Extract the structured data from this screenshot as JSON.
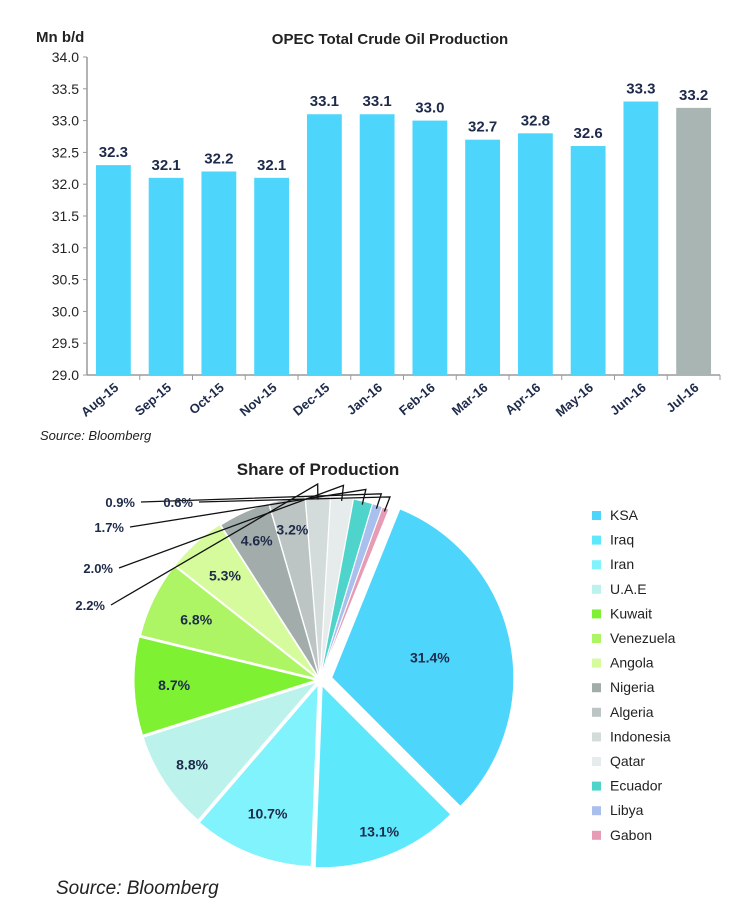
{
  "chart_data": [
    {
      "type": "bar",
      "title": "OPEC Total Crude Oil Production",
      "ylabel": "Mn b/d",
      "xlabel": "",
      "ylim": [
        29.0,
        34.0
      ],
      "yticks": [
        "29.0",
        "29.5",
        "30.0",
        "30.5",
        "31.0",
        "31.5",
        "32.0",
        "32.5",
        "33.0",
        "33.5",
        "34.0"
      ],
      "categories": [
        "Aug-15",
        "Sep-15",
        "Oct-15",
        "Nov-15",
        "Dec-15",
        "Jan-16",
        "Feb-16",
        "Mar-16",
        "Apr-16",
        "May-16",
        "Jun-16",
        "Jul-16"
      ],
      "values": [
        32.3,
        32.1,
        32.2,
        32.1,
        33.1,
        33.1,
        33.0,
        32.7,
        32.8,
        32.6,
        33.3,
        33.2
      ],
      "labels": [
        "32.3",
        "32.1",
        "32.2",
        "32.1",
        "33.1",
        "33.1",
        "33.0",
        "32.7",
        "32.8",
        "32.6",
        "33.3",
        "33.2"
      ],
      "bar_colors": [
        "#4dd5fb",
        "#4dd5fb",
        "#4dd5fb",
        "#4dd5fb",
        "#4dd5fb",
        "#4dd5fb",
        "#4dd5fb",
        "#4dd5fb",
        "#4dd5fb",
        "#4dd5fb",
        "#4dd5fb",
        "#a9b5b3"
      ],
      "source": "Source: Bloomberg"
    },
    {
      "type": "pie",
      "title": "Share of Production",
      "slices": [
        {
          "name": "KSA",
          "value": 31.4,
          "label": "31.4%",
          "color": "#4dd5fb"
        },
        {
          "name": "Iraq",
          "value": 13.1,
          "label": "13.1%",
          "color": "#5ee8fc"
        },
        {
          "name": "Iran",
          "value": 10.7,
          "label": "10.7%",
          "color": "#80f3fd"
        },
        {
          "name": "U.A.E",
          "value": 8.8,
          "label": "8.8%",
          "color": "#bbf3ec"
        },
        {
          "name": "Kuwait",
          "value": 8.7,
          "label": "8.7%",
          "color": "#7ef232"
        },
        {
          "name": "Venezuela",
          "value": 6.8,
          "label": "6.8%",
          "color": "#aef566"
        },
        {
          "name": "Angola",
          "value": 5.3,
          "label": "5.3%",
          "color": "#d5fb9c"
        },
        {
          "name": "Nigeria",
          "value": 4.6,
          "label": "4.6%",
          "color": "#a2acab"
        },
        {
          "name": "Algeria",
          "value": 3.2,
          "label": "3.2%",
          "color": "#bcc5c4"
        },
        {
          "name": "Indonesia",
          "value": 2.2,
          "label": "2.2%",
          "color": "#d4dcdb"
        },
        {
          "name": "Qatar",
          "value": 2.0,
          "label": "2.0%",
          "color": "#e6ebeb"
        },
        {
          "name": "Ecuador",
          "value": 1.7,
          "label": "1.7%",
          "color": "#4fd4cc"
        },
        {
          "name": "Libya",
          "value": 0.9,
          "label": "0.9%",
          "color": "#a9c0ef"
        },
        {
          "name": "Gabon",
          "value": 0.6,
          "label": "0.6%",
          "color": "#e59cb4"
        }
      ],
      "source": "Source: Bloomberg"
    }
  ]
}
